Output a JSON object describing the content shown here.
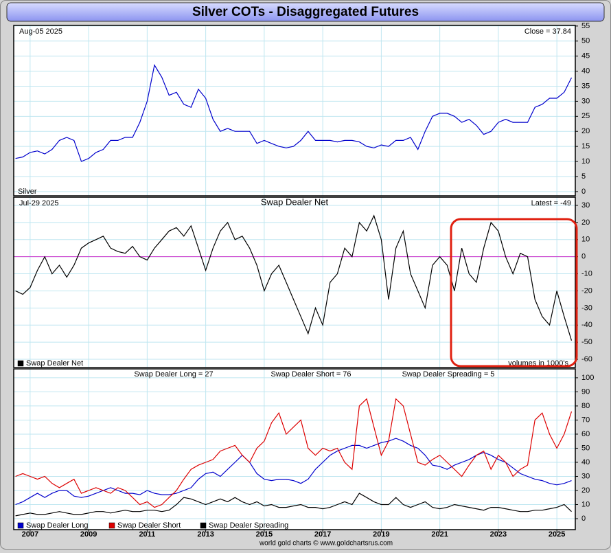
{
  "title": "Silver COTs - Disaggregated Futures",
  "footer": "world gold charts © www.goldchartsrus.com",
  "chart_data": [
    {
      "type": "line",
      "date": "Aug-05  2025",
      "latest": "Close = 37.84",
      "x": [
        2006.5,
        2006.75,
        2007,
        2007.25,
        2007.5,
        2007.75,
        2008,
        2008.25,
        2008.5,
        2008.75,
        2009,
        2009.25,
        2009.5,
        2009.75,
        2010,
        2010.25,
        2010.5,
        2010.75,
        2011,
        2011.25,
        2011.5,
        2011.75,
        2012,
        2012.25,
        2012.5,
        2012.75,
        2013,
        2013.25,
        2013.5,
        2013.75,
        2014,
        2014.25,
        2014.5,
        2014.75,
        2015,
        2015.25,
        2015.5,
        2015.75,
        2016,
        2016.25,
        2016.5,
        2016.75,
        2017,
        2017.25,
        2017.5,
        2017.75,
        2018,
        2018.25,
        2018.5,
        2018.75,
        2019,
        2019.25,
        2019.5,
        2019.75,
        2020,
        2020.25,
        2020.5,
        2020.75,
        2021,
        2021.25,
        2021.5,
        2021.75,
        2022,
        2022.25,
        2022.5,
        2022.75,
        2023,
        2023.25,
        2023.5,
        2023.75,
        2024,
        2024.25,
        2024.5,
        2024.75,
        2025,
        2025.25,
        2025.5
      ],
      "series": [
        {
          "name": "Silver",
          "color": "#0000cc",
          "values": [
            11,
            11.5,
            13,
            13.5,
            12.5,
            14,
            17,
            18,
            17,
            10,
            11,
            13,
            14,
            17,
            17,
            18,
            18,
            23,
            30,
            42,
            38,
            32,
            33,
            29,
            28,
            34,
            31,
            24,
            20,
            21,
            20,
            20,
            20,
            16,
            17,
            16,
            15,
            14.5,
            15,
            17,
            20,
            17,
            17,
            17,
            16.5,
            17,
            17,
            16.5,
            15,
            14.5,
            15.5,
            15,
            17,
            17,
            18,
            14,
            20,
            25,
            26,
            26,
            25,
            23,
            24,
            22,
            19,
            20,
            23,
            24,
            23,
            23,
            23,
            28,
            29,
            31,
            31,
            33,
            37.84
          ]
        }
      ],
      "xlim": [
        2006.44,
        2025.63
      ],
      "xticks": [
        2007,
        2009,
        2011,
        2013,
        2015,
        2017,
        2019,
        2021,
        2023,
        2025
      ],
      "ylim": [
        -1.4,
        55.2
      ],
      "yticks": [
        0,
        5,
        10,
        15,
        20,
        25,
        30,
        35,
        40,
        45,
        50,
        55
      ],
      "grid": true
    },
    {
      "type": "line",
      "title": "Swap Dealer Net",
      "date": "Jul-29  2025",
      "latest": "Latest = -49",
      "note": "volumes in 1000's",
      "x": [
        2006.5,
        2006.75,
        2007,
        2007.25,
        2007.5,
        2007.75,
        2008,
        2008.25,
        2008.5,
        2008.75,
        2009,
        2009.25,
        2009.5,
        2009.75,
        2010,
        2010.25,
        2010.5,
        2010.75,
        2011,
        2011.25,
        2011.5,
        2011.75,
        2012,
        2012.25,
        2012.5,
        2012.75,
        2013,
        2013.25,
        2013.5,
        2013.75,
        2014,
        2014.25,
        2014.5,
        2014.75,
        2015,
        2015.25,
        2015.5,
        2015.75,
        2016,
        2016.25,
        2016.5,
        2016.75,
        2017,
        2017.25,
        2017.5,
        2017.75,
        2018,
        2018.25,
        2018.5,
        2018.75,
        2019,
        2019.25,
        2019.5,
        2019.75,
        2020,
        2020.25,
        2020.5,
        2020.75,
        2021,
        2021.25,
        2021.5,
        2021.75,
        2022,
        2022.25,
        2022.5,
        2022.75,
        2023,
        2023.25,
        2023.5,
        2023.75,
        2024,
        2024.25,
        2024.5,
        2024.75,
        2025,
        2025.25,
        2025.5
      ],
      "series": [
        {
          "name": "Swap Dealer Net",
          "color": "#000000",
          "values": [
            -20,
            -22,
            -18,
            -8,
            0,
            -10,
            -5,
            -12,
            -5,
            5,
            8,
            10,
            12,
            5,
            3,
            2,
            6,
            0,
            -2,
            5,
            10,
            15,
            17,
            12,
            18,
            5,
            -8,
            5,
            15,
            20,
            10,
            12,
            5,
            -5,
            -20,
            -10,
            -5,
            -15,
            -25,
            -35,
            -45,
            -30,
            -40,
            -15,
            -10,
            5,
            0,
            20,
            15,
            24,
            10,
            -25,
            5,
            15,
            -10,
            -20,
            -30,
            -5,
            0,
            -5,
            -20,
            5,
            -10,
            -15,
            5,
            20,
            15,
            0,
            -10,
            2,
            0,
            -25,
            -35,
            -40,
            -20,
            -35,
            -49
          ]
        }
      ],
      "hline": 0,
      "hline_color": "#cc33cc",
      "xlim": [
        2006.44,
        2025.63
      ],
      "xticks": [
        2007,
        2009,
        2011,
        2013,
        2015,
        2017,
        2019,
        2021,
        2023,
        2025
      ],
      "ylim": [
        -64.8,
        34.8
      ],
      "yticks": [
        -60,
        -50,
        -40,
        -30,
        -20,
        -10,
        0,
        10,
        20,
        30
      ],
      "grid": true
    },
    {
      "type": "line",
      "stats": [
        "Swap Dealer Long = 27",
        "Swap Dealer Short = 76",
        "Swap Dealer Spreading = 5"
      ],
      "x": [
        2006.5,
        2006.75,
        2007,
        2007.25,
        2007.5,
        2007.75,
        2008,
        2008.25,
        2008.5,
        2008.75,
        2009,
        2009.25,
        2009.5,
        2009.75,
        2010,
        2010.25,
        2010.5,
        2010.75,
        2011,
        2011.25,
        2011.5,
        2011.75,
        2012,
        2012.25,
        2012.5,
        2012.75,
        2013,
        2013.25,
        2013.5,
        2013.75,
        2014,
        2014.25,
        2014.5,
        2014.75,
        2015,
        2015.25,
        2015.5,
        2015.75,
        2016,
        2016.25,
        2016.5,
        2016.75,
        2017,
        2017.25,
        2017.5,
        2017.75,
        2018,
        2018.25,
        2018.5,
        2018.75,
        2019,
        2019.25,
        2019.5,
        2019.75,
        2020,
        2020.25,
        2020.5,
        2020.75,
        2021,
        2021.25,
        2021.5,
        2021.75,
        2022,
        2022.25,
        2022.5,
        2022.75,
        2023,
        2023.25,
        2023.5,
        2023.75,
        2024,
        2024.25,
        2024.5,
        2024.75,
        2025,
        2025.25,
        2025.5
      ],
      "series": [
        {
          "name": "Swap Dealer Long",
          "color": "#0000cc",
          "values": [
            10,
            12,
            15,
            18,
            15,
            18,
            20,
            20,
            16,
            15,
            16,
            18,
            20,
            22,
            20,
            18,
            18,
            17,
            20,
            18,
            17,
            17,
            18,
            20,
            22,
            28,
            32,
            33,
            30,
            35,
            40,
            45,
            40,
            32,
            28,
            27,
            28,
            28,
            27,
            25,
            28,
            35,
            40,
            45,
            48,
            50,
            52,
            52,
            50,
            52,
            54,
            55,
            57,
            55,
            52,
            50,
            45,
            38,
            37,
            35,
            38,
            40,
            42,
            45,
            47,
            45,
            42,
            40,
            36,
            32,
            30,
            28,
            27,
            25,
            24,
            25,
            27
          ]
        },
        {
          "name": "Swap Dealer Short",
          "color": "#dd0000",
          "values": [
            30,
            32,
            30,
            28,
            30,
            25,
            22,
            25,
            28,
            18,
            20,
            22,
            20,
            18,
            22,
            20,
            15,
            10,
            12,
            8,
            10,
            15,
            20,
            28,
            35,
            38,
            40,
            42,
            48,
            50,
            52,
            45,
            40,
            50,
            55,
            68,
            75,
            60,
            65,
            70,
            50,
            45,
            50,
            48,
            50,
            40,
            35,
            80,
            85,
            65,
            45,
            55,
            85,
            80,
            60,
            40,
            38,
            42,
            45,
            40,
            35,
            30,
            38,
            45,
            48,
            35,
            45,
            40,
            30,
            35,
            38,
            70,
            75,
            60,
            50,
            60,
            76
          ]
        },
        {
          "name": "Swap Dealer Spreading",
          "color": "#000000",
          "values": [
            2,
            3,
            4,
            3,
            3,
            4,
            5,
            4,
            3,
            3,
            4,
            5,
            5,
            4,
            5,
            6,
            5,
            5,
            6,
            6,
            5,
            6,
            10,
            15,
            14,
            12,
            10,
            12,
            14,
            12,
            15,
            12,
            10,
            12,
            9,
            10,
            8,
            8,
            9,
            10,
            8,
            8,
            7,
            8,
            10,
            12,
            10,
            18,
            15,
            12,
            10,
            10,
            15,
            10,
            8,
            10,
            12,
            8,
            7,
            8,
            10,
            9,
            8,
            7,
            6,
            8,
            8,
            7,
            6,
            5,
            5,
            6,
            6,
            7,
            8,
            10,
            5
          ]
        }
      ],
      "xlim": [
        2006.44,
        2025.63
      ],
      "xticks": [
        2007,
        2009,
        2011,
        2013,
        2015,
        2017,
        2019,
        2021,
        2023,
        2025
      ],
      "ylim": [
        -7.8,
        106.3
      ],
      "yticks": [
        0,
        10,
        20,
        30,
        40,
        50,
        60,
        70,
        80,
        90,
        100
      ],
      "grid": true
    }
  ]
}
